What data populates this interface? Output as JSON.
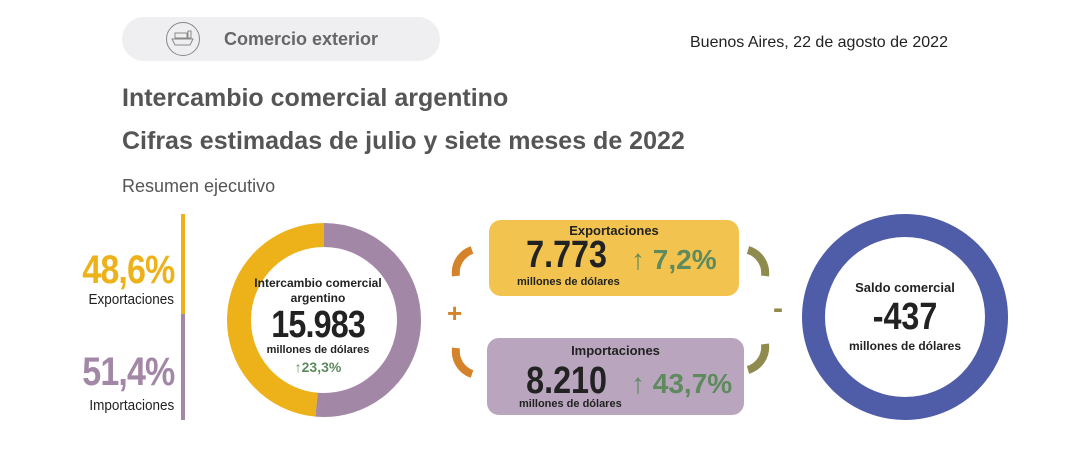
{
  "header": {
    "section": "Comercio exterior",
    "section_icon": "ship-icon",
    "date": "Buenos Aires, 22 de agosto de 2022"
  },
  "title": "Intercambio comercial argentino",
  "subtitle": "Cifras estimadas de julio y siete meses de 2022",
  "summary_label": "Resumen ejecutivo",
  "shares": {
    "exports_pct": "48,6%",
    "exports_label": "Exportaciones",
    "imports_pct": "51,4%",
    "imports_label": "Importaciones"
  },
  "intercambio": {
    "title": "Intercambio comercial argentino",
    "value": "15.983",
    "unit": "millones de dólares",
    "change": "23,3%"
  },
  "exportaciones": {
    "title": "Exportaciones",
    "value": "7.773",
    "unit": "millones de dólares",
    "change": "7,2%"
  },
  "importaciones": {
    "title": "Importaciones",
    "value": "8.210",
    "unit": "millones de dólares",
    "change": "43,7%"
  },
  "operators": {
    "plus": "+",
    "minus": "-"
  },
  "saldo": {
    "title": "Saldo comercial",
    "value": "-437",
    "unit": "millones de dólares"
  },
  "colors": {
    "exports": "#EDB21A",
    "imports": "#A287A6",
    "saldo": "#4F5DA8",
    "export_box": "#F2C44F",
    "import_box": "#B9A6BE",
    "plus": "#D4832A",
    "minus": "#8F8A4E",
    "up": "#5E8A5E"
  },
  "chart_data": {
    "type": "pie",
    "title": "Intercambio comercial argentino",
    "categories": [
      "Exportaciones",
      "Importaciones"
    ],
    "values": [
      48.6,
      51.4
    ],
    "total": 15983,
    "unit": "millones de dólares"
  }
}
